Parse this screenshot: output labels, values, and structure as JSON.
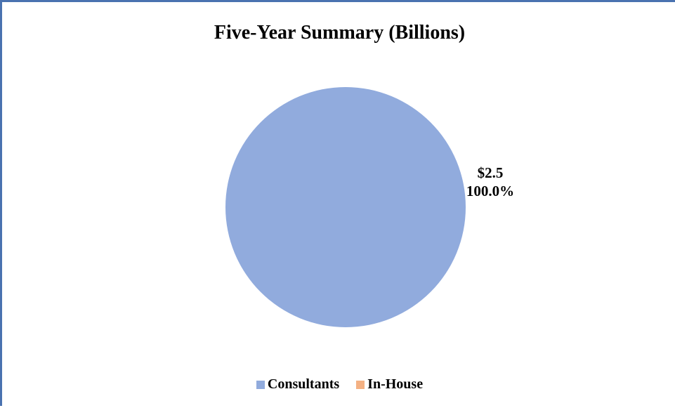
{
  "chart_data": {
    "type": "pie",
    "title": "Five-Year Summary (Billions)",
    "categories": [
      "Consultants",
      "In-House"
    ],
    "values": [
      2.5,
      0.0
    ],
    "colors": [
      "#91abdd",
      "#f4b183"
    ],
    "data_labels": [
      {
        "category": "Consultants",
        "value_text": "$2.5",
        "percent_text": "100.0%"
      }
    ],
    "legend_position": "bottom"
  }
}
